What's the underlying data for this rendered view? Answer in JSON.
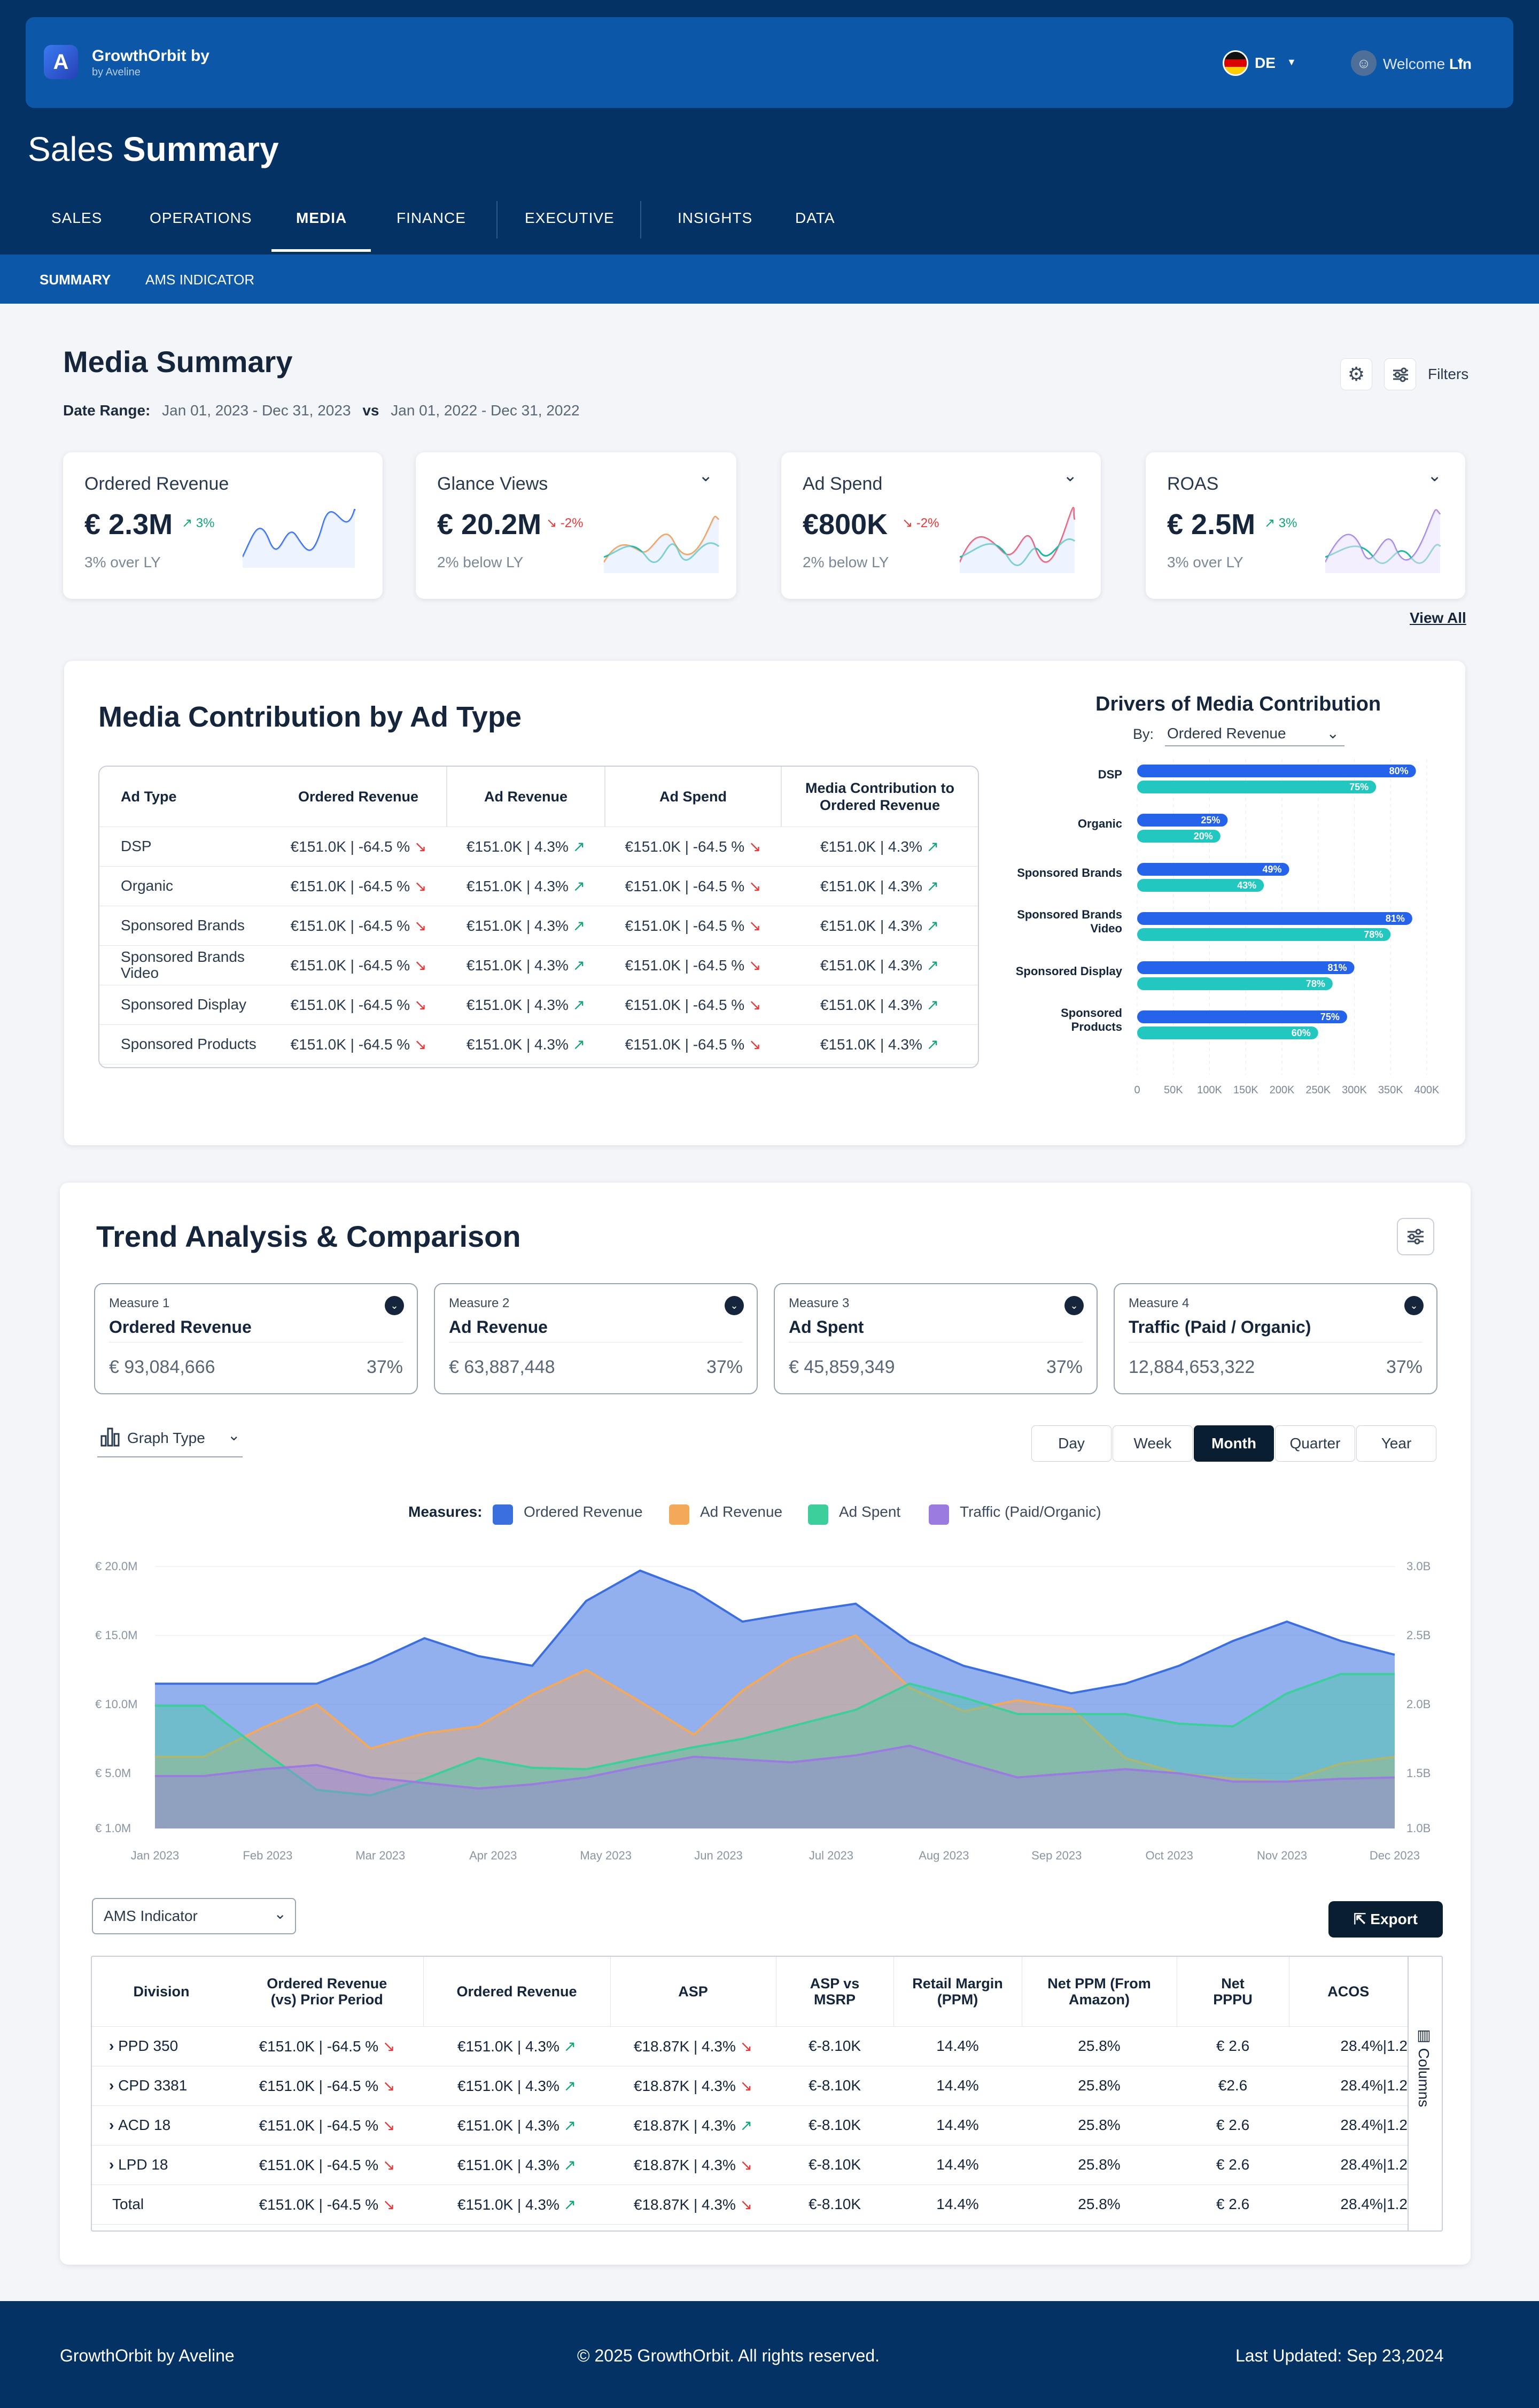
{
  "header": {
    "brand": "GrowthOrbit by",
    "brand_sub": "by Aveline",
    "lang": "DE",
    "welcome": "Welcome",
    "user": "Lin",
    "page_title_light": "Sales",
    "page_title_bold": "Summary"
  },
  "nav": [
    "SALES",
    "OPERATIONS",
    "MEDIA",
    "FINANCE",
    "EXECUTIVE",
    "INSIGHTS",
    "DATA"
  ],
  "subnav": [
    "SUMMARY",
    "AMS INDICATOR"
  ],
  "media": {
    "title": "Media Summary",
    "date_label": "Date Range:",
    "date_range": "Jan 01, 2023 - Dec 31, 2023",
    "vs": "vs",
    "compare_range": "Jan 01, 2022 - Dec 31, 2022",
    "filters": "Filters",
    "view_all": "View All"
  },
  "kpis": [
    {
      "title": "Ordered Revenue",
      "value": "€ 2.3M",
      "change": "3%",
      "dir": "up",
      "sub": "3% over LY"
    },
    {
      "title": "Glance Views",
      "value": "€ 20.2M",
      "change": "-2%",
      "dir": "down",
      "sub": "2% below LY"
    },
    {
      "title": "Ad Spend",
      "value": "€800K",
      "change": "-2%",
      "dir": "down",
      "sub": "2% below LY"
    },
    {
      "title": "ROAS",
      "value": "€ 2.5M",
      "change": "3%",
      "dir": "up",
      "sub": "3% over LY"
    }
  ],
  "contribution": {
    "title": "Media Contribution by Ad Type",
    "headers": [
      "Ad Type",
      "Ordered Revenue",
      "Ad Revenue",
      "Ad Spend",
      "Media Contribution to Ordered Revenue"
    ],
    "rows": [
      [
        "DSP",
        "€151.0K | -64.5 %",
        "€151.0K | 4.3%",
        "€151.0K | -64.5 %",
        "€151.0K | 4.3%"
      ],
      [
        "Organic",
        "€151.0K | -64.5 %",
        "€151.0K | 4.3%",
        "€151.0K | -64.5 %",
        "€151.0K | 4.3%"
      ],
      [
        "Sponsored Brands",
        "€151.0K | -64.5 %",
        "€151.0K | 4.3%",
        "€151.0K | -64.5 %",
        "€151.0K | 4.3%"
      ],
      [
        "Sponsored Brands Video",
        "€151.0K | -64.5 %",
        "€151.0K | 4.3%",
        "€151.0K | -64.5 %",
        "€151.0K | 4.3%"
      ],
      [
        "Sponsored Display",
        "€151.0K | -64.5 %",
        "€151.0K | 4.3%",
        "€151.0K | -64.5 %",
        "€151.0K | 4.3%"
      ],
      [
        "Sponsored Products",
        "€151.0K | -64.5 %",
        "€151.0K | 4.3%",
        "€151.0K | -64.5 %",
        "€151.0K | 4.3%"
      ]
    ],
    "drivers_title": "Drivers of Media Contribution",
    "by_label": "By:",
    "by_value": "Ordered Revenue"
  },
  "trend": {
    "title": "Trend Analysis & Comparison",
    "measures": [
      {
        "label": "Measure 1",
        "name": "Ordered Revenue",
        "value": "€ 93,084,666",
        "pct": "37%"
      },
      {
        "label": "Measure 2",
        "name": "Ad Revenue",
        "value": "€ 63,887,448",
        "pct": "37%"
      },
      {
        "label": "Measure 3",
        "name": "Ad Spent",
        "value": "€ 45,859,349",
        "pct": "37%"
      },
      {
        "label": "Measure 4",
        "name": "Traffic (Paid / Organic)",
        "value": "12,884,653,322",
        "pct": "37%"
      }
    ],
    "graph_type": "Graph Type",
    "periods": [
      "Day",
      "Week",
      "Month",
      "Quarter",
      "Year"
    ],
    "active_period": "Month",
    "legend_label": "Measures:"
  },
  "chart_data": [
    {
      "type": "bar",
      "title": "Drivers of Media Contribution",
      "categories": [
        "DSP",
        "Organic",
        "Sponsored Brands",
        "Sponsored Brands Video",
        "Sponsored Display",
        "Sponsored Products"
      ],
      "series": [
        {
          "values": [
            385000,
            125000,
            210000,
            380000,
            300000,
            290000
          ],
          "labels": [
            "80%",
            "25%",
            "49%",
            "81%",
            "81%",
            "75%"
          ],
          "color": "#2563eb"
        },
        {
          "values": [
            330000,
            115000,
            175000,
            350000,
            270000,
            250000
          ],
          "labels": [
            "75%",
            "20%",
            "43%",
            "78%",
            "78%",
            "60%"
          ],
          "color": "#22c8bf"
        }
      ],
      "xticks": [
        "0",
        "50K",
        "100K",
        "150K",
        "200K",
        "250K",
        "300K",
        "350K",
        "400K"
      ],
      "xlim": [
        0,
        400000
      ]
    },
    {
      "type": "area",
      "title": "",
      "categories": [
        "Jan 2023",
        "Feb 2023",
        "Mar 2023",
        "Apr 2023",
        "May 2023",
        "Jun 2023",
        "Jul 2023",
        "Aug 2023",
        "Sep 2023",
        "Oct 2023",
        "Nov 2023",
        "Dec 2023"
      ],
      "y_ticks": [
        "€ 1.0M",
        "€ 5.0M",
        "€ 10.0M",
        "€ 15.0M",
        "€ 20.0M"
      ],
      "y2_ticks": [
        "1.0B",
        "1.5B",
        "2.0B",
        "2.5B",
        "3.0B"
      ],
      "series": [
        {
          "name": "Ordered Revenue",
          "color": "#3b6fe0",
          "x": [
            0,
            0.45,
            1,
            1.5,
            2,
            2.5,
            3,
            3.5,
            4,
            4.5,
            5,
            5.45,
            5.9,
            6.5,
            7,
            7.5,
            8,
            8.5,
            9,
            9.5,
            10,
            10.5,
            11,
            11.5
          ],
          "values": [
            11.5,
            11.5,
            11.5,
            11.5,
            13,
            14.8,
            13.5,
            12.8,
            17.5,
            19.7,
            18.2,
            16.0,
            16.6,
            17.3,
            14.5,
            12.8,
            11.8,
            10.8,
            11.5,
            12.8,
            14.6,
            16.0,
            14.6,
            13.6
          ]
        },
        {
          "name": "Ad Revenue",
          "color": "#f4a95a",
          "x": [
            0,
            0.45,
            1,
            1.5,
            2,
            2.5,
            3,
            3.5,
            4,
            4.5,
            5,
            5.45,
            5.9,
            6.5,
            7,
            7.5,
            8,
            8.5,
            9,
            9.5,
            10,
            10.5,
            11,
            11.5
          ],
          "values": [
            6.2,
            6.2,
            8.3,
            10.0,
            6.8,
            7.9,
            8.4,
            10.7,
            12.5,
            10.2,
            7.8,
            11.0,
            13.3,
            15.0,
            11.2,
            9.5,
            10.3,
            9.7,
            6.1,
            5.0,
            4.6,
            4.4,
            5.7,
            6.2
          ]
        },
        {
          "name": "Ad Spent",
          "color": "#3ccf9b",
          "x": [
            0,
            0.45,
            1,
            1.5,
            2,
            2.5,
            3,
            3.5,
            4,
            4.5,
            5,
            5.45,
            5.9,
            6.5,
            7,
            7.5,
            8,
            8.5,
            9,
            9.5,
            10,
            10.5,
            11,
            11.5
          ],
          "values": [
            9.9,
            9.9,
            6.6,
            3.8,
            3.4,
            4.6,
            6.1,
            5.4,
            5.3,
            6.1,
            6.9,
            7.5,
            8.4,
            9.6,
            11.5,
            10.5,
            9.3,
            9.3,
            9.3,
            8.6,
            8.4,
            10.8,
            12.2,
            12.2
          ]
        },
        {
          "name": "Traffic (Paid/Organic)",
          "color": "#9b7be0",
          "x": [
            0,
            0.45,
            1,
            1.5,
            2,
            2.5,
            3,
            3.5,
            4,
            4.5,
            5,
            5.45,
            5.9,
            6.5,
            7,
            7.5,
            8,
            8.5,
            9,
            9.5,
            10,
            10.5,
            11,
            11.5
          ],
          "values": [
            4.8,
            4.8,
            5.3,
            5.6,
            4.7,
            4.3,
            3.9,
            4.2,
            4.7,
            5.5,
            6.2,
            6.0,
            5.8,
            6.3,
            7.0,
            5.8,
            4.7,
            5.0,
            5.3,
            5.0,
            4.4,
            4.4,
            4.6,
            4.7
          ]
        }
      ]
    }
  ],
  "ams": {
    "select": "AMS Indicator",
    "export": "Export",
    "columns": "Columns",
    "headers": [
      "Division",
      "Ordered Revenue (vs) Prior Period",
      "Ordered Revenue",
      "ASP",
      "ASP vs MSRP",
      "Retail Margin (PPM)",
      "Net PPM (From Amazon)",
      "Net PPPU",
      "ACOS"
    ],
    "rows": [
      [
        "PPD 350",
        "€151.0K | -64.5 %",
        "€151.0K | 4.3%",
        "€18.87K | 4.3%",
        "€-8.10K",
        "14.4%",
        "25.8%",
        "€ 2.6",
        "28.4%|1.2"
      ],
      [
        "CPD 3381",
        "€151.0K | -64.5 %",
        "€151.0K | 4.3%",
        "€18.87K | 4.3%",
        "€-8.10K",
        "14.4%",
        "25.8%",
        "€2.6",
        "28.4%|1.2"
      ],
      [
        "ACD 18",
        "€151.0K | -64.5 %",
        "€151.0K | 4.3%",
        "€18.87K | 4.3%",
        "€-8.10K",
        "14.4%",
        "25.8%",
        "€ 2.6",
        "28.4%|1.2"
      ],
      [
        "LPD 18",
        "€151.0K | -64.5 %",
        "€151.0K | 4.3%",
        "€18.87K | 4.3%",
        "€-8.10K",
        "14.4%",
        "25.8%",
        "€ 2.6",
        "28.4%|1.2"
      ],
      [
        "Total",
        "€151.0K | -64.5 %",
        "€151.0K | 4.3%",
        "€18.87K | 4.3%",
        "€-8.10K",
        "14.4%",
        "25.8%",
        "€ 2.6",
        "28.4%|1.2"
      ]
    ]
  },
  "footer": {
    "left": "GrowthOrbit by Aveline",
    "center": "© 2025 GrowthOrbit. All rights reserved.",
    "right": "Last Updated: Sep 23,2024"
  }
}
